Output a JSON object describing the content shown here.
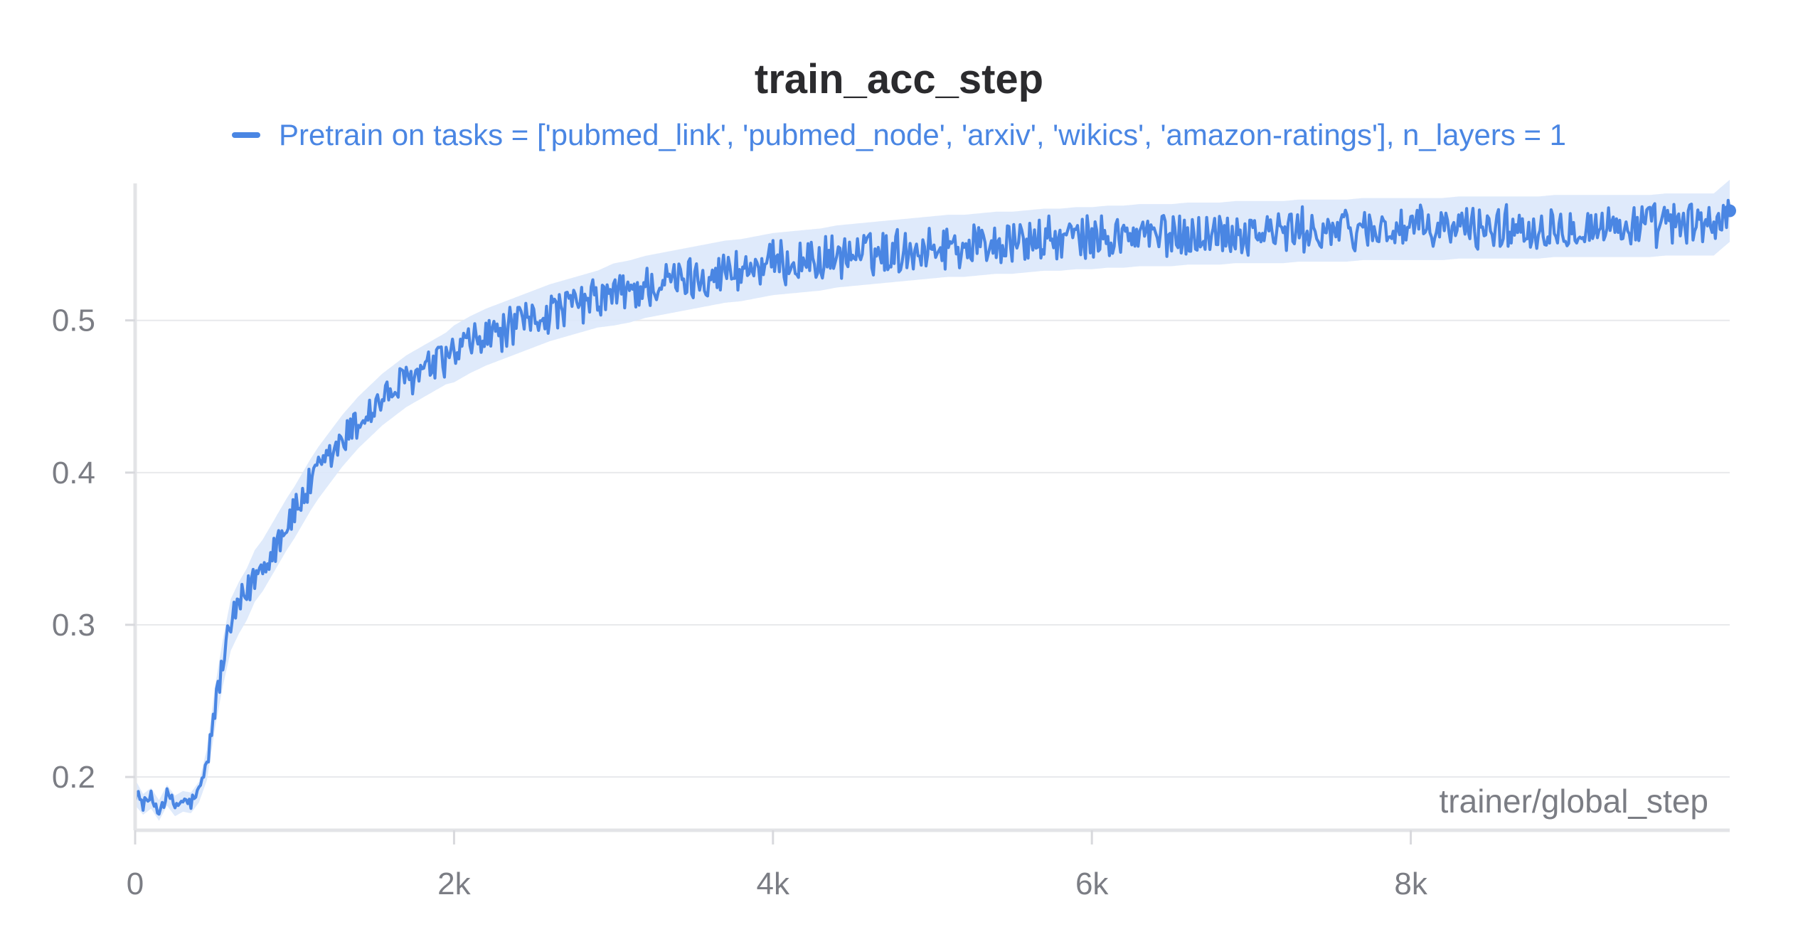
{
  "chart_data": {
    "type": "line",
    "title": "train_acc_step",
    "xlabel": "trainer/global_step",
    "ylabel": "",
    "xlim": [
      0,
      10000
    ],
    "ylim": [
      0.165,
      0.59
    ],
    "x_ticks": [
      0,
      2000,
      4000,
      6000,
      8000
    ],
    "x_tick_labels": [
      "0",
      "2k",
      "4k",
      "6k",
      "8k"
    ],
    "y_ticks": [
      0.2,
      0.3,
      0.4,
      0.5
    ],
    "y_tick_labels": [
      "0.2",
      "0.3",
      "0.4",
      "0.5"
    ],
    "grid": true,
    "legend_position": "top-center",
    "series": [
      {
        "name": "Pretrain on tasks = ['pubmed_link', 'pubmed_node', 'arxiv', 'wikics', 'amazon-ratings'], n_layers = 1",
        "color": "#4a86e3",
        "band_color": "#dce8fb",
        "x": [
          0,
          50,
          100,
          150,
          200,
          250,
          300,
          350,
          400,
          450,
          500,
          550,
          600,
          650,
          700,
          750,
          800,
          850,
          900,
          950,
          1000,
          1050,
          1100,
          1150,
          1200,
          1250,
          1300,
          1350,
          1400,
          1450,
          1500,
          1550,
          1600,
          1650,
          1700,
          1750,
          1800,
          1850,
          1900,
          1950,
          2000,
          2100,
          2200,
          2300,
          2400,
          2500,
          2600,
          2700,
          2800,
          2900,
          3000,
          3100,
          3200,
          3300,
          3400,
          3500,
          3600,
          3700,
          3800,
          3900,
          4000,
          4100,
          4200,
          4300,
          4400,
          4500,
          4600,
          4700,
          4800,
          4900,
          5000,
          5100,
          5200,
          5300,
          5400,
          5500,
          5600,
          5700,
          5800,
          5900,
          6000,
          6100,
          6200,
          6300,
          6400,
          6500,
          6600,
          6700,
          6800,
          6900,
          7000,
          7100,
          7200,
          7300,
          7400,
          7500,
          7600,
          7700,
          7800,
          7900,
          8000,
          8100,
          8200,
          8300,
          8400,
          8500,
          8600,
          8700,
          8800,
          8900,
          9000,
          9100,
          9200,
          9300,
          9400,
          9500,
          9600,
          9700,
          9800,
          9900,
          10000
        ],
        "values": [
          0.19,
          0.182,
          0.186,
          0.178,
          0.188,
          0.181,
          0.184,
          0.183,
          0.19,
          0.208,
          0.245,
          0.275,
          0.3,
          0.311,
          0.32,
          0.332,
          0.339,
          0.348,
          0.357,
          0.366,
          0.374,
          0.383,
          0.392,
          0.4,
          0.407,
          0.414,
          0.421,
          0.427,
          0.433,
          0.438,
          0.443,
          0.448,
          0.452,
          0.456,
          0.46,
          0.463,
          0.466,
          0.469,
          0.472,
          0.475,
          0.478,
          0.484,
          0.489,
          0.493,
          0.497,
          0.501,
          0.505,
          0.508,
          0.511,
          0.514,
          0.517,
          0.519,
          0.522,
          0.524,
          0.526,
          0.528,
          0.53,
          0.532,
          0.533,
          0.535,
          0.537,
          0.538,
          0.539,
          0.54,
          0.542,
          0.543,
          0.544,
          0.545,
          0.546,
          0.547,
          0.548,
          0.549,
          0.549,
          0.55,
          0.551,
          0.551,
          0.552,
          0.553,
          0.553,
          0.554,
          0.554,
          0.555,
          0.555,
          0.556,
          0.556,
          0.556,
          0.557,
          0.557,
          0.557,
          0.558,
          0.558,
          0.558,
          0.558,
          0.559,
          0.559,
          0.559,
          0.559,
          0.56,
          0.56,
          0.56,
          0.56,
          0.56,
          0.56,
          0.561,
          0.561,
          0.561,
          0.561,
          0.561,
          0.561,
          0.562,
          0.562,
          0.562,
          0.562,
          0.562,
          0.562,
          0.562,
          0.563,
          0.563,
          0.563,
          0.563,
          0.572
        ],
        "band_halfwidth": [
          0.005,
          0.004,
          0.004,
          0.004,
          0.004,
          0.004,
          0.004,
          0.004,
          0.004,
          0.006,
          0.008,
          0.009,
          0.01,
          0.01,
          0.01,
          0.01,
          0.01,
          0.01,
          0.01,
          0.01,
          0.01,
          0.01,
          0.01,
          0.01,
          0.01,
          0.01,
          0.01,
          0.01,
          0.01,
          0.01,
          0.01,
          0.01,
          0.01,
          0.01,
          0.01,
          0.01,
          0.01,
          0.01,
          0.01,
          0.01,
          0.011,
          0.011,
          0.011,
          0.011,
          0.011,
          0.011,
          0.011,
          0.011,
          0.011,
          0.011,
          0.012,
          0.012,
          0.012,
          0.012,
          0.012,
          0.012,
          0.012,
          0.012,
          0.012,
          0.012,
          0.012,
          0.012,
          0.012,
          0.012,
          0.012,
          0.012,
          0.012,
          0.012,
          0.012,
          0.012,
          0.012,
          0.012,
          0.012,
          0.012,
          0.012,
          0.012,
          0.012,
          0.012,
          0.012,
          0.012,
          0.012,
          0.012,
          0.012,
          0.012,
          0.012,
          0.012,
          0.012,
          0.012,
          0.012,
          0.012,
          0.012,
          0.012,
          0.012,
          0.012,
          0.012,
          0.012,
          0.012,
          0.012,
          0.012,
          0.012,
          0.012,
          0.012,
          0.012,
          0.012,
          0.012,
          0.012,
          0.012,
          0.012,
          0.012,
          0.012,
          0.012,
          0.012,
          0.012,
          0.012,
          0.012,
          0.012,
          0.012,
          0.012,
          0.012,
          0.012,
          0.012
        ]
      }
    ]
  }
}
